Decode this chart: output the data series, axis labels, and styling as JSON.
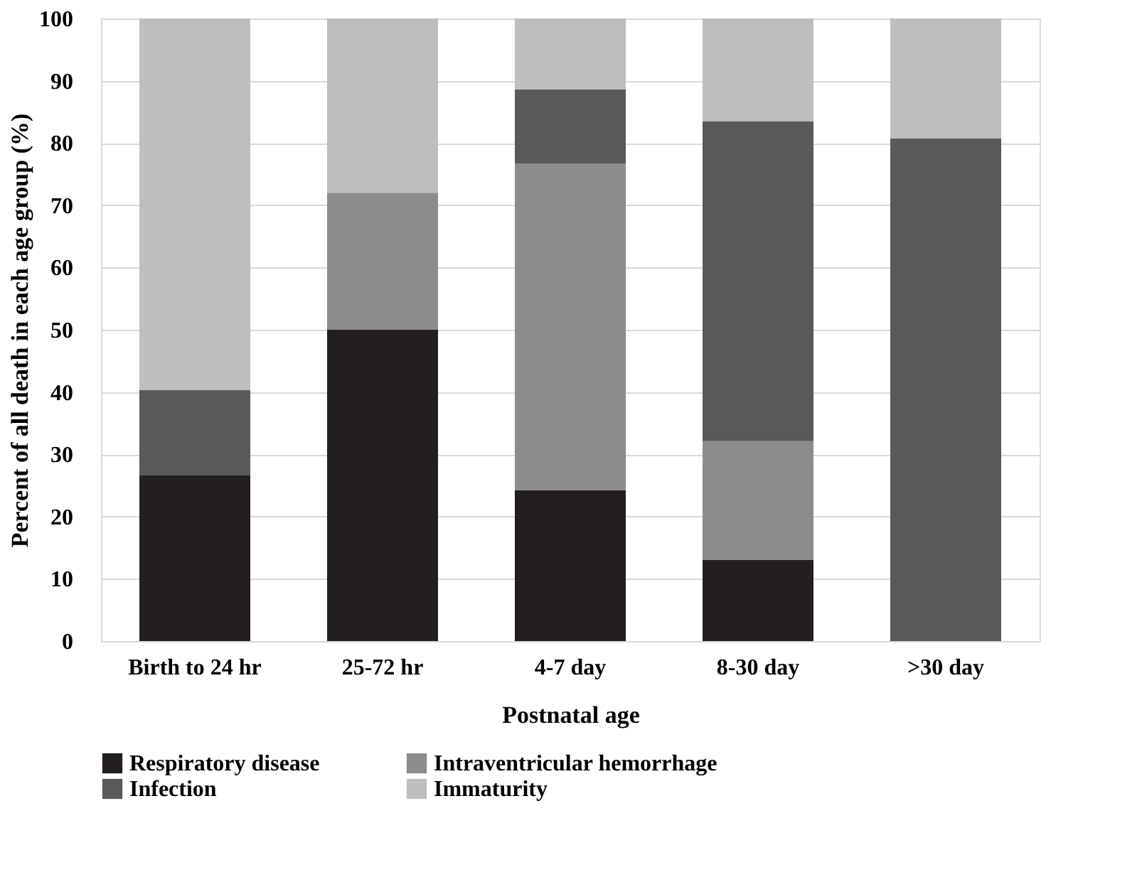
{
  "chart_data": {
    "type": "bar",
    "stacked": true,
    "xlabel": "Postnatal age",
    "ylabel": "Percent of all death in each age group (%)",
    "categories": [
      "Birth to 24 hr",
      "25-72 hr",
      "4-7 day",
      "8-30 day",
      ">30 day"
    ],
    "series": [
      {
        "name": "Respiratory disease",
        "color": "#231f20",
        "values": [
          26.6,
          50,
          24.2,
          13,
          0
        ]
      },
      {
        "name": "Intraventricular hemorrhage",
        "color": "#8c8c8c",
        "values": [
          0,
          22,
          52.5,
          19.1,
          0
        ]
      },
      {
        "name": "Infection",
        "color": "#58595b",
        "values": [
          13.7,
          0,
          11.9,
          51.4,
          80.7
        ]
      },
      {
        "name": "Immaturity",
        "color": "#bcbec0",
        "values": [
          59.7,
          28,
          11.4,
          16.5,
          19.3
        ]
      }
    ],
    "ylim": [
      0,
      100
    ],
    "yticks": [
      0,
      10,
      20,
      30,
      40,
      50,
      60,
      70,
      80,
      90,
      100
    ],
    "grid": "y",
    "legend": "bottom"
  }
}
